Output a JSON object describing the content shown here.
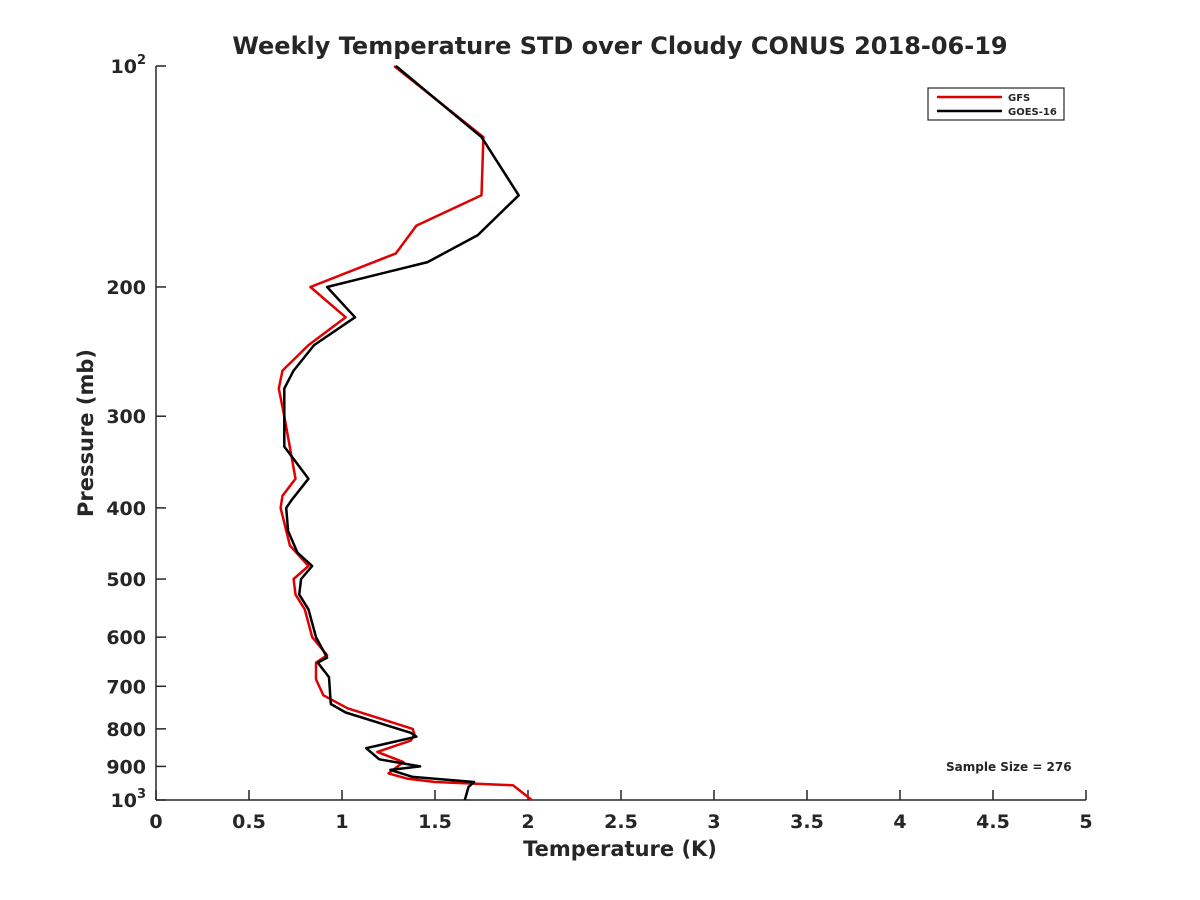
{
  "chart_data": {
    "type": "line",
    "title": "Weekly Temperature STD over Cloudy CONUS 2018-06-19",
    "xlabel": "Temperature (K)",
    "ylabel": "Pressure (mb)",
    "xlim": [
      0,
      5
    ],
    "ylim": [
      1000,
      100
    ],
    "y_scale": "log",
    "y_reversed": true,
    "x_ticks": [
      "0",
      "0.5",
      "1",
      "1.5",
      "2",
      "2.5",
      "3",
      "3.5",
      "4",
      "4.5",
      "5"
    ],
    "y_ticks": [
      {
        "value": 100,
        "base": "10",
        "exp": "2"
      },
      {
        "value": 200,
        "label": "200"
      },
      {
        "value": 300,
        "label": "300"
      },
      {
        "value": 400,
        "label": "400"
      },
      {
        "value": 500,
        "label": "500"
      },
      {
        "value": 600,
        "label": "600"
      },
      {
        "value": 700,
        "label": "700"
      },
      {
        "value": 800,
        "label": "800"
      },
      {
        "value": 900,
        "label": "900"
      },
      {
        "value": 1000,
        "base": "10",
        "exp": "3"
      }
    ],
    "legend_position": "top-right",
    "annotation": "Sample Size = 276",
    "series": [
      {
        "name": "GFS",
        "color": "#e00000",
        "points": [
          [
            1.28,
            100
          ],
          [
            1.76,
            125
          ],
          [
            1.75,
            150
          ],
          [
            1.4,
            165
          ],
          [
            1.29,
            180
          ],
          [
            0.83,
            200
          ],
          [
            1.02,
            220
          ],
          [
            0.82,
            240
          ],
          [
            0.68,
            260
          ],
          [
            0.66,
            275
          ],
          [
            0.69,
            300
          ],
          [
            0.75,
            365
          ],
          [
            0.68,
            385
          ],
          [
            0.67,
            400
          ],
          [
            0.72,
            450
          ],
          [
            0.82,
            480
          ],
          [
            0.74,
            500
          ],
          [
            0.75,
            525
          ],
          [
            0.8,
            550
          ],
          [
            0.84,
            600
          ],
          [
            0.92,
            635
          ],
          [
            0.86,
            650
          ],
          [
            0.86,
            685
          ],
          [
            0.9,
            720
          ],
          [
            1.03,
            750
          ],
          [
            1.38,
            800
          ],
          [
            1.39,
            815
          ],
          [
            1.37,
            830
          ],
          [
            1.19,
            860
          ],
          [
            1.33,
            888
          ],
          [
            1.25,
            920
          ],
          [
            1.35,
            935
          ],
          [
            1.5,
            945
          ],
          [
            1.92,
            955
          ],
          [
            2.02,
            1000
          ]
        ]
      },
      {
        "name": "GOES-16",
        "color": "#000000",
        "points": [
          [
            1.29,
            100
          ],
          [
            1.75,
            125
          ],
          [
            1.95,
            150
          ],
          [
            1.73,
            170
          ],
          [
            1.46,
            185
          ],
          [
            0.92,
            200
          ],
          [
            1.07,
            220
          ],
          [
            0.85,
            240
          ],
          [
            0.74,
            260
          ],
          [
            0.69,
            275
          ],
          [
            0.69,
            330
          ],
          [
            0.82,
            365
          ],
          [
            0.73,
            390
          ],
          [
            0.7,
            400
          ],
          [
            0.71,
            430
          ],
          [
            0.76,
            460
          ],
          [
            0.84,
            480
          ],
          [
            0.78,
            500
          ],
          [
            0.77,
            525
          ],
          [
            0.82,
            550
          ],
          [
            0.86,
            600
          ],
          [
            0.92,
            640
          ],
          [
            0.87,
            650
          ],
          [
            0.93,
            680
          ],
          [
            0.94,
            740
          ],
          [
            1.02,
            760
          ],
          [
            1.37,
            810
          ],
          [
            1.4,
            820
          ],
          [
            1.13,
            850
          ],
          [
            1.2,
            880
          ],
          [
            1.42,
            900
          ],
          [
            1.26,
            910
          ],
          [
            1.38,
            930
          ],
          [
            1.71,
            945
          ],
          [
            1.68,
            960
          ],
          [
            1.66,
            1000
          ]
        ]
      }
    ]
  }
}
